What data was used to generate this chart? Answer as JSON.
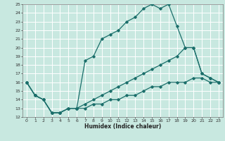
{
  "xlabel": "Humidex (Indice chaleur)",
  "xlim": [
    -0.5,
    23.5
  ],
  "ylim": [
    12,
    25
  ],
  "xticks": [
    0,
    1,
    2,
    3,
    4,
    5,
    6,
    7,
    8,
    9,
    10,
    11,
    12,
    13,
    14,
    15,
    16,
    17,
    18,
    19,
    20,
    21,
    22,
    23
  ],
  "yticks": [
    12,
    13,
    14,
    15,
    16,
    17,
    18,
    19,
    20,
    21,
    22,
    23,
    24,
    25
  ],
  "bg_color": "#c8e8e0",
  "grid_color": "#ffffff",
  "line_color": "#1a6e6a",
  "line1_x": [
    0,
    1,
    2,
    3,
    4,
    5,
    6,
    7,
    8,
    9,
    10,
    11,
    12,
    13,
    14,
    15,
    16,
    17,
    18,
    19,
    20,
    21,
    22,
    23
  ],
  "line1_y": [
    16,
    14.5,
    14,
    12.5,
    12.5,
    13,
    13,
    18.5,
    19,
    21,
    21.5,
    22,
    23,
    23.5,
    24.5,
    25,
    24.5,
    25,
    22.5,
    20,
    20,
    17,
    16.5,
    16
  ],
  "line2_x": [
    0,
    1,
    2,
    3,
    4,
    5,
    6,
    7,
    8,
    9,
    10,
    11,
    12,
    13,
    14,
    15,
    16,
    17,
    18,
    19,
    20,
    21,
    22,
    23
  ],
  "line2_y": [
    16,
    14.5,
    14,
    12.5,
    12.5,
    13,
    13,
    13.5,
    14,
    14.5,
    15,
    15.5,
    16,
    16.5,
    17,
    17.5,
    18,
    18.5,
    19,
    20,
    20,
    17,
    16.5,
    16
  ],
  "line3_x": [
    0,
    1,
    2,
    3,
    4,
    5,
    6,
    7,
    8,
    9,
    10,
    11,
    12,
    13,
    14,
    15,
    16,
    17,
    18,
    19,
    20,
    21,
    22,
    23
  ],
  "line3_y": [
    16,
    14.5,
    14,
    12.5,
    12.5,
    13,
    13,
    13,
    13.5,
    13.5,
    14,
    14,
    14.5,
    14.5,
    15,
    15.5,
    15.5,
    16,
    16,
    16,
    16.5,
    16.5,
    16,
    16
  ]
}
